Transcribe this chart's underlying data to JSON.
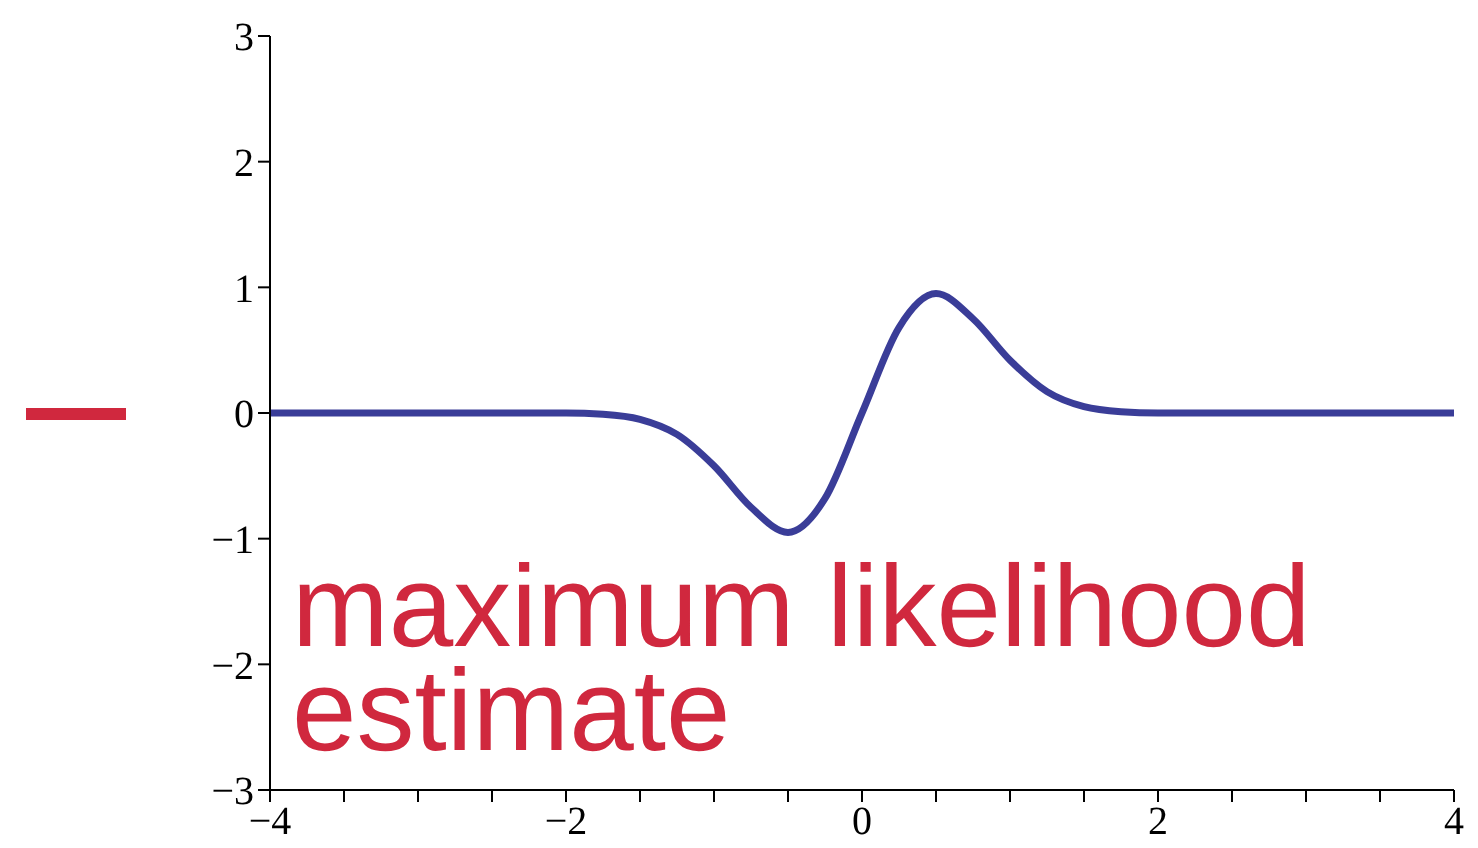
{
  "chart_data": {
    "type": "line",
    "x": [
      -4,
      -3,
      -2,
      -1.75,
      -1.5,
      -1.25,
      -1,
      -0.75,
      -0.5,
      -0.25,
      0,
      0.25,
      0.5,
      0.75,
      1,
      1.25,
      1.5,
      1.75,
      2,
      3,
      4
    ],
    "series": [
      {
        "color": "#3a3d98",
        "values": [
          0,
          0,
          0,
          -0.01,
          -0.05,
          -0.17,
          -0.42,
          -0.75,
          -0.95,
          -0.68,
          0,
          0.68,
          0.95,
          0.75,
          0.42,
          0.17,
          0.05,
          0.01,
          0,
          0,
          0
        ]
      }
    ],
    "xlim": [
      -4,
      4
    ],
    "ylim": [
      -3,
      3
    ],
    "xticks": [
      {
        "value": -4,
        "label": "−4"
      },
      {
        "value": -3.5,
        "label": null
      },
      {
        "value": -3,
        "label": null
      },
      {
        "value": -2.5,
        "label": null
      },
      {
        "value": -2,
        "label": "−2"
      },
      {
        "value": -1.5,
        "label": null
      },
      {
        "value": -1,
        "label": null
      },
      {
        "value": -0.5,
        "label": null
      },
      0,
      {
        "value": 0.5,
        "label": null
      },
      {
        "value": 1,
        "label": null
      },
      {
        "value": 1.5,
        "label": null
      },
      2,
      {
        "value": 2.5,
        "label": null
      },
      {
        "value": 3,
        "label": null
      },
      {
        "value": 3.5,
        "label": null
      },
      4
    ],
    "yticks": [
      {
        "value": -3,
        "label": "−3"
      },
      {
        "value": -2,
        "label": "−2"
      },
      {
        "value": -1,
        "label": "−1"
      },
      0,
      1,
      2,
      3
    ],
    "annotations": [
      "maximum likelihood estimate"
    ],
    "marker": "none",
    "line_style": "solid",
    "grid": false,
    "legend": false
  }
}
